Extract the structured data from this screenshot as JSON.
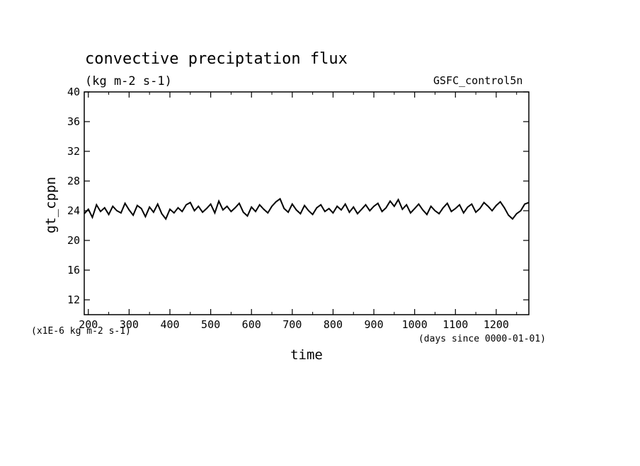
{
  "chart_data": {
    "type": "line",
    "title": "convective preciptation flux",
    "subtitle": "(kg m-2 s-1)",
    "source_label": "GSFC_control5n",
    "xlabel": "time",
    "x_unit_note": "(days since 0000-01-01)",
    "ylabel": "gt_cppn",
    "y_unit_note": "(x1E-6 kg m-2 s-1)",
    "xlim": [
      190,
      1280
    ],
    "ylim": [
      10,
      40
    ],
    "x_ticks": [
      200,
      300,
      400,
      500,
      600,
      700,
      800,
      900,
      1000,
      1100,
      1200
    ],
    "y_ticks": [
      12,
      16,
      20,
      24,
      28,
      32,
      36,
      40
    ],
    "grid": false,
    "colors": {
      "line": "#000000",
      "axes": "#000000",
      "background": "#ffffff"
    },
    "series": [
      {
        "x": [
          190,
          200,
          210,
          220,
          230,
          240,
          250,
          260,
          270,
          280,
          290,
          300,
          310,
          320,
          330,
          340,
          350,
          360,
          370,
          380,
          390,
          400,
          410,
          420,
          430,
          440,
          450,
          460,
          470,
          480,
          490,
          500,
          510,
          520,
          530,
          540,
          550,
          560,
          570,
          580,
          590,
          600,
          610,
          620,
          630,
          640,
          650,
          660,
          670,
          680,
          690,
          700,
          710,
          720,
          730,
          740,
          750,
          760,
          770,
          780,
          790,
          800,
          810,
          820,
          830,
          840,
          850,
          860,
          870,
          880,
          890,
          900,
          910,
          920,
          930,
          940,
          950,
          960,
          970,
          980,
          990,
          1000,
          1010,
          1020,
          1030,
          1040,
          1050,
          1060,
          1070,
          1080,
          1090,
          1100,
          1110,
          1120,
          1130,
          1140,
          1150,
          1160,
          1170,
          1180,
          1190,
          1200,
          1210,
          1220,
          1230,
          1240,
          1250,
          1260,
          1270,
          1280
        ],
        "y": [
          23.6,
          24.2,
          23.1,
          24.8,
          23.9,
          24.4,
          23.5,
          24.6,
          24.0,
          23.7,
          25.0,
          24.1,
          23.4,
          24.7,
          24.3,
          23.2,
          24.5,
          23.8,
          24.9,
          23.6,
          22.9,
          24.2,
          23.7,
          24.4,
          23.9,
          24.8,
          25.1,
          24.0,
          24.6,
          23.8,
          24.3,
          24.9,
          23.7,
          25.3,
          24.1,
          24.6,
          23.9,
          24.4,
          25.0,
          23.8,
          23.3,
          24.5,
          23.9,
          24.8,
          24.2,
          23.7,
          24.6,
          25.2,
          25.6,
          24.3,
          23.8,
          24.9,
          24.1,
          23.6,
          24.7,
          24.0,
          23.5,
          24.4,
          24.8,
          23.9,
          24.3,
          23.7,
          24.6,
          24.1,
          24.9,
          23.8,
          24.5,
          23.6,
          24.2,
          24.8,
          24.0,
          24.6,
          25.0,
          23.9,
          24.4,
          25.3,
          24.6,
          25.5,
          24.2,
          24.8,
          23.7,
          24.3,
          24.9,
          24.1,
          23.5,
          24.6,
          24.0,
          23.6,
          24.4,
          25.0,
          23.9,
          24.3,
          24.8,
          23.7,
          24.5,
          24.9,
          23.8,
          24.3,
          25.1,
          24.6,
          24.0,
          24.7,
          25.2,
          24.4,
          23.4,
          22.9,
          23.6,
          24.0,
          24.9,
          25.1
        ]
      }
    ]
  }
}
